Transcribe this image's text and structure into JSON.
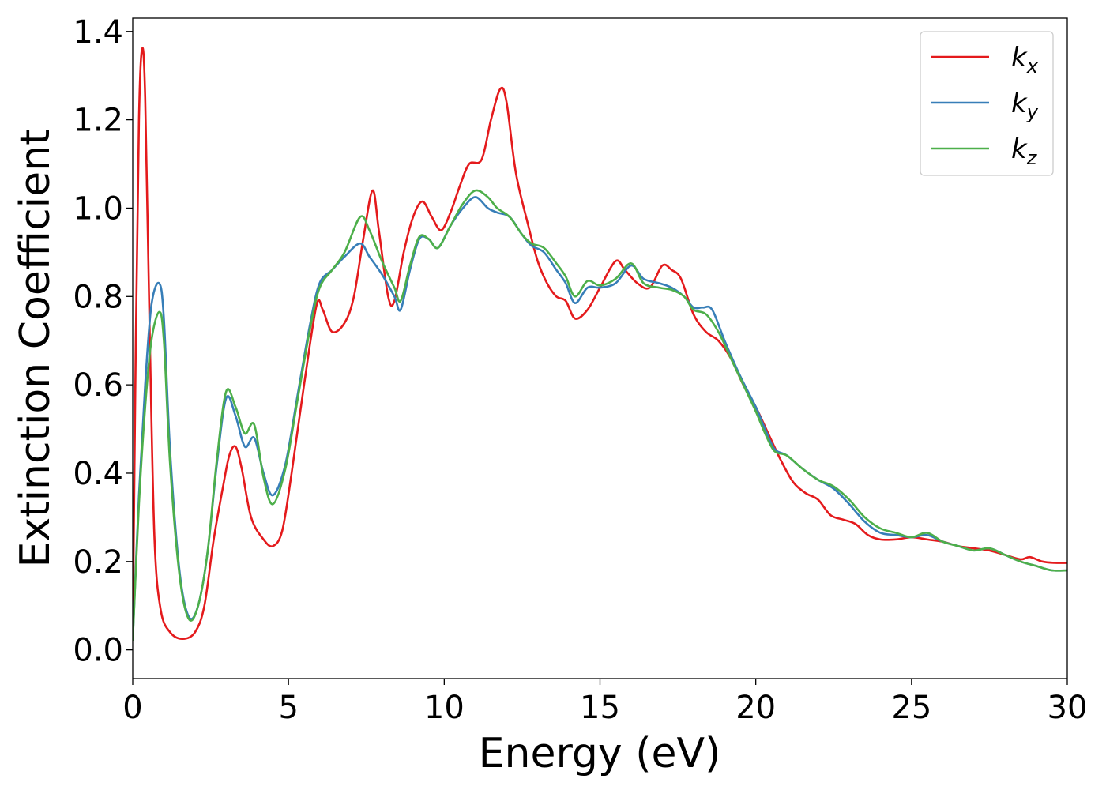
{
  "chart_data": {
    "type": "line",
    "xlabel": "Energy (eV)",
    "ylabel": "Extinction Coefficient",
    "xlim": [
      0,
      30
    ],
    "ylim": [
      -0.065,
      1.43
    ],
    "xticks": [
      0,
      5,
      10,
      15,
      20,
      25,
      30
    ],
    "yticks": [
      0.0,
      0.2,
      0.4,
      0.6,
      0.8,
      1.0,
      1.2,
      1.4
    ],
    "xtick_labels": [
      "0",
      "5",
      "10",
      "15",
      "20",
      "25",
      "30"
    ],
    "ytick_labels": [
      "0.0",
      "0.2",
      "0.4",
      "0.6",
      "0.8",
      "1.0",
      "1.2",
      "1.4"
    ],
    "grid": false,
    "legend_position": "top-right",
    "series": [
      {
        "name": "k",
        "subscript": "x",
        "color": "#e41a1c",
        "points": [
          [
            0,
            0.02
          ],
          [
            0.1,
            0.7
          ],
          [
            0.2,
            1.2
          ],
          [
            0.3,
            1.36
          ],
          [
            0.4,
            1.25
          ],
          [
            0.55,
            0.7
          ],
          [
            0.7,
            0.25
          ],
          [
            0.9,
            0.09
          ],
          [
            1.2,
            0.04
          ],
          [
            1.6,
            0.025
          ],
          [
            2.0,
            0.04
          ],
          [
            2.3,
            0.1
          ],
          [
            2.6,
            0.25
          ],
          [
            2.9,
            0.37
          ],
          [
            3.1,
            0.44
          ],
          [
            3.3,
            0.46
          ],
          [
            3.5,
            0.41
          ],
          [
            3.8,
            0.3
          ],
          [
            4.2,
            0.25
          ],
          [
            4.5,
            0.235
          ],
          [
            4.8,
            0.27
          ],
          [
            5.1,
            0.4
          ],
          [
            5.5,
            0.6
          ],
          [
            5.9,
            0.78
          ],
          [
            6.1,
            0.77
          ],
          [
            6.4,
            0.72
          ],
          [
            6.8,
            0.74
          ],
          [
            7.1,
            0.8
          ],
          [
            7.4,
            0.93
          ],
          [
            7.7,
            1.04
          ],
          [
            7.9,
            0.95
          ],
          [
            8.2,
            0.8
          ],
          [
            8.4,
            0.79
          ],
          [
            8.7,
            0.9
          ],
          [
            9.0,
            0.98
          ],
          [
            9.3,
            1.015
          ],
          [
            9.6,
            0.98
          ],
          [
            9.9,
            0.95
          ],
          [
            10.2,
            0.99
          ],
          [
            10.5,
            1.05
          ],
          [
            10.8,
            1.1
          ],
          [
            11.2,
            1.11
          ],
          [
            11.5,
            1.2
          ],
          [
            11.8,
            1.27
          ],
          [
            12.0,
            1.24
          ],
          [
            12.3,
            1.08
          ],
          [
            12.7,
            0.96
          ],
          [
            13.0,
            0.88
          ],
          [
            13.3,
            0.83
          ],
          [
            13.6,
            0.8
          ],
          [
            13.9,
            0.79
          ],
          [
            14.2,
            0.75
          ],
          [
            14.6,
            0.77
          ],
          [
            15.0,
            0.82
          ],
          [
            15.5,
            0.88
          ],
          [
            15.8,
            0.86
          ],
          [
            16.2,
            0.83
          ],
          [
            16.6,
            0.82
          ],
          [
            17.0,
            0.87
          ],
          [
            17.3,
            0.86
          ],
          [
            17.6,
            0.84
          ],
          [
            18.0,
            0.76
          ],
          [
            18.4,
            0.72
          ],
          [
            18.8,
            0.7
          ],
          [
            19.2,
            0.66
          ],
          [
            19.6,
            0.6
          ],
          [
            20.0,
            0.55
          ],
          [
            20.4,
            0.49
          ],
          [
            20.8,
            0.43
          ],
          [
            21.2,
            0.38
          ],
          [
            21.6,
            0.355
          ],
          [
            22.0,
            0.34
          ],
          [
            22.4,
            0.305
          ],
          [
            22.8,
            0.295
          ],
          [
            23.2,
            0.285
          ],
          [
            23.6,
            0.26
          ],
          [
            24.0,
            0.25
          ],
          [
            24.5,
            0.25
          ],
          [
            25.0,
            0.255
          ],
          [
            25.5,
            0.25
          ],
          [
            26.0,
            0.245
          ],
          [
            26.5,
            0.235
          ],
          [
            27.0,
            0.23
          ],
          [
            27.5,
            0.225
          ],
          [
            28.0,
            0.215
          ],
          [
            28.5,
            0.205
          ],
          [
            28.8,
            0.21
          ],
          [
            29.2,
            0.2
          ],
          [
            29.6,
            0.197
          ],
          [
            30.0,
            0.197
          ]
        ]
      },
      {
        "name": "k",
        "subscript": "y",
        "color": "#377eb8",
        "points": [
          [
            0,
            0.02
          ],
          [
            0.2,
            0.35
          ],
          [
            0.4,
            0.6
          ],
          [
            0.6,
            0.78
          ],
          [
            0.85,
            0.83
          ],
          [
            1.0,
            0.75
          ],
          [
            1.2,
            0.45
          ],
          [
            1.5,
            0.18
          ],
          [
            1.8,
            0.075
          ],
          [
            2.1,
            0.1
          ],
          [
            2.4,
            0.22
          ],
          [
            2.7,
            0.42
          ],
          [
            3.0,
            0.57
          ],
          [
            3.3,
            0.53
          ],
          [
            3.6,
            0.46
          ],
          [
            3.9,
            0.48
          ],
          [
            4.2,
            0.4
          ],
          [
            4.5,
            0.35
          ],
          [
            4.9,
            0.42
          ],
          [
            5.3,
            0.58
          ],
          [
            5.7,
            0.74
          ],
          [
            6.0,
            0.83
          ],
          [
            6.4,
            0.86
          ],
          [
            6.8,
            0.89
          ],
          [
            7.3,
            0.92
          ],
          [
            7.6,
            0.89
          ],
          [
            8.0,
            0.85
          ],
          [
            8.4,
            0.8
          ],
          [
            8.6,
            0.77
          ],
          [
            8.9,
            0.86
          ],
          [
            9.2,
            0.93
          ],
          [
            9.5,
            0.93
          ],
          [
            9.8,
            0.91
          ],
          [
            10.2,
            0.96
          ],
          [
            10.6,
            1.0
          ],
          [
            11.0,
            1.025
          ],
          [
            11.4,
            1.0
          ],
          [
            11.7,
            0.99
          ],
          [
            12.1,
            0.98
          ],
          [
            12.5,
            0.94
          ],
          [
            12.8,
            0.915
          ],
          [
            13.2,
            0.9
          ],
          [
            13.6,
            0.86
          ],
          [
            13.9,
            0.83
          ],
          [
            14.2,
            0.785
          ],
          [
            14.6,
            0.82
          ],
          [
            15.0,
            0.82
          ],
          [
            15.5,
            0.83
          ],
          [
            16.0,
            0.87
          ],
          [
            16.4,
            0.84
          ],
          [
            16.9,
            0.83
          ],
          [
            17.3,
            0.82
          ],
          [
            17.7,
            0.8
          ],
          [
            18.0,
            0.775
          ],
          [
            18.3,
            0.775
          ],
          [
            18.6,
            0.77
          ],
          [
            19.0,
            0.7
          ],
          [
            19.5,
            0.62
          ],
          [
            20.0,
            0.55
          ],
          [
            20.3,
            0.5
          ],
          [
            20.6,
            0.455
          ],
          [
            21.0,
            0.44
          ],
          [
            21.5,
            0.41
          ],
          [
            22.0,
            0.385
          ],
          [
            22.5,
            0.365
          ],
          [
            23.0,
            0.33
          ],
          [
            23.5,
            0.29
          ],
          [
            24.0,
            0.265
          ],
          [
            24.5,
            0.26
          ],
          [
            25.0,
            0.255
          ],
          [
            25.5,
            0.26
          ],
          [
            26.0,
            0.245
          ],
          [
            26.5,
            0.235
          ],
          [
            27.0,
            0.225
          ],
          [
            27.5,
            0.23
          ],
          [
            28.0,
            0.215
          ],
          [
            28.5,
            0.2
          ],
          [
            29.0,
            0.19
          ],
          [
            29.5,
            0.18
          ],
          [
            30.0,
            0.18
          ]
        ]
      },
      {
        "name": "k",
        "subscript": "z",
        "color": "#4daf4a",
        "points": [
          [
            0,
            0.02
          ],
          [
            0.2,
            0.33
          ],
          [
            0.4,
            0.55
          ],
          [
            0.6,
            0.7
          ],
          [
            0.85,
            0.765
          ],
          [
            1.0,
            0.7
          ],
          [
            1.2,
            0.42
          ],
          [
            1.5,
            0.17
          ],
          [
            1.8,
            0.07
          ],
          [
            2.1,
            0.1
          ],
          [
            2.4,
            0.22
          ],
          [
            2.7,
            0.43
          ],
          [
            3.0,
            0.585
          ],
          [
            3.3,
            0.55
          ],
          [
            3.6,
            0.49
          ],
          [
            3.9,
            0.51
          ],
          [
            4.2,
            0.39
          ],
          [
            4.5,
            0.33
          ],
          [
            4.9,
            0.41
          ],
          [
            5.3,
            0.57
          ],
          [
            5.7,
            0.73
          ],
          [
            6.0,
            0.82
          ],
          [
            6.4,
            0.86
          ],
          [
            6.8,
            0.9
          ],
          [
            7.3,
            0.98
          ],
          [
            7.6,
            0.95
          ],
          [
            8.0,
            0.88
          ],
          [
            8.4,
            0.82
          ],
          [
            8.6,
            0.79
          ],
          [
            8.9,
            0.87
          ],
          [
            9.2,
            0.935
          ],
          [
            9.5,
            0.93
          ],
          [
            9.8,
            0.91
          ],
          [
            10.2,
            0.96
          ],
          [
            10.6,
            1.01
          ],
          [
            11.0,
            1.04
          ],
          [
            11.4,
            1.025
          ],
          [
            11.7,
            1.0
          ],
          [
            12.1,
            0.98
          ],
          [
            12.5,
            0.94
          ],
          [
            12.8,
            0.92
          ],
          [
            13.2,
            0.91
          ],
          [
            13.6,
            0.875
          ],
          [
            13.9,
            0.845
          ],
          [
            14.2,
            0.8
          ],
          [
            14.6,
            0.835
          ],
          [
            15.0,
            0.825
          ],
          [
            15.5,
            0.84
          ],
          [
            16.0,
            0.875
          ],
          [
            16.4,
            0.83
          ],
          [
            16.9,
            0.82
          ],
          [
            17.3,
            0.815
          ],
          [
            17.7,
            0.8
          ],
          [
            18.0,
            0.77
          ],
          [
            18.4,
            0.76
          ],
          [
            18.8,
            0.72
          ],
          [
            19.2,
            0.66
          ],
          [
            19.6,
            0.6
          ],
          [
            20.0,
            0.54
          ],
          [
            20.3,
            0.49
          ],
          [
            20.6,
            0.45
          ],
          [
            21.0,
            0.44
          ],
          [
            21.5,
            0.41
          ],
          [
            22.0,
            0.385
          ],
          [
            22.5,
            0.37
          ],
          [
            23.0,
            0.34
          ],
          [
            23.5,
            0.3
          ],
          [
            24.0,
            0.275
          ],
          [
            24.5,
            0.265
          ],
          [
            25.0,
            0.255
          ],
          [
            25.5,
            0.265
          ],
          [
            26.0,
            0.245
          ],
          [
            26.5,
            0.235
          ],
          [
            27.0,
            0.225
          ],
          [
            27.5,
            0.23
          ],
          [
            28.0,
            0.215
          ],
          [
            28.5,
            0.2
          ],
          [
            29.0,
            0.19
          ],
          [
            29.5,
            0.18
          ],
          [
            30.0,
            0.18
          ]
        ]
      }
    ]
  }
}
